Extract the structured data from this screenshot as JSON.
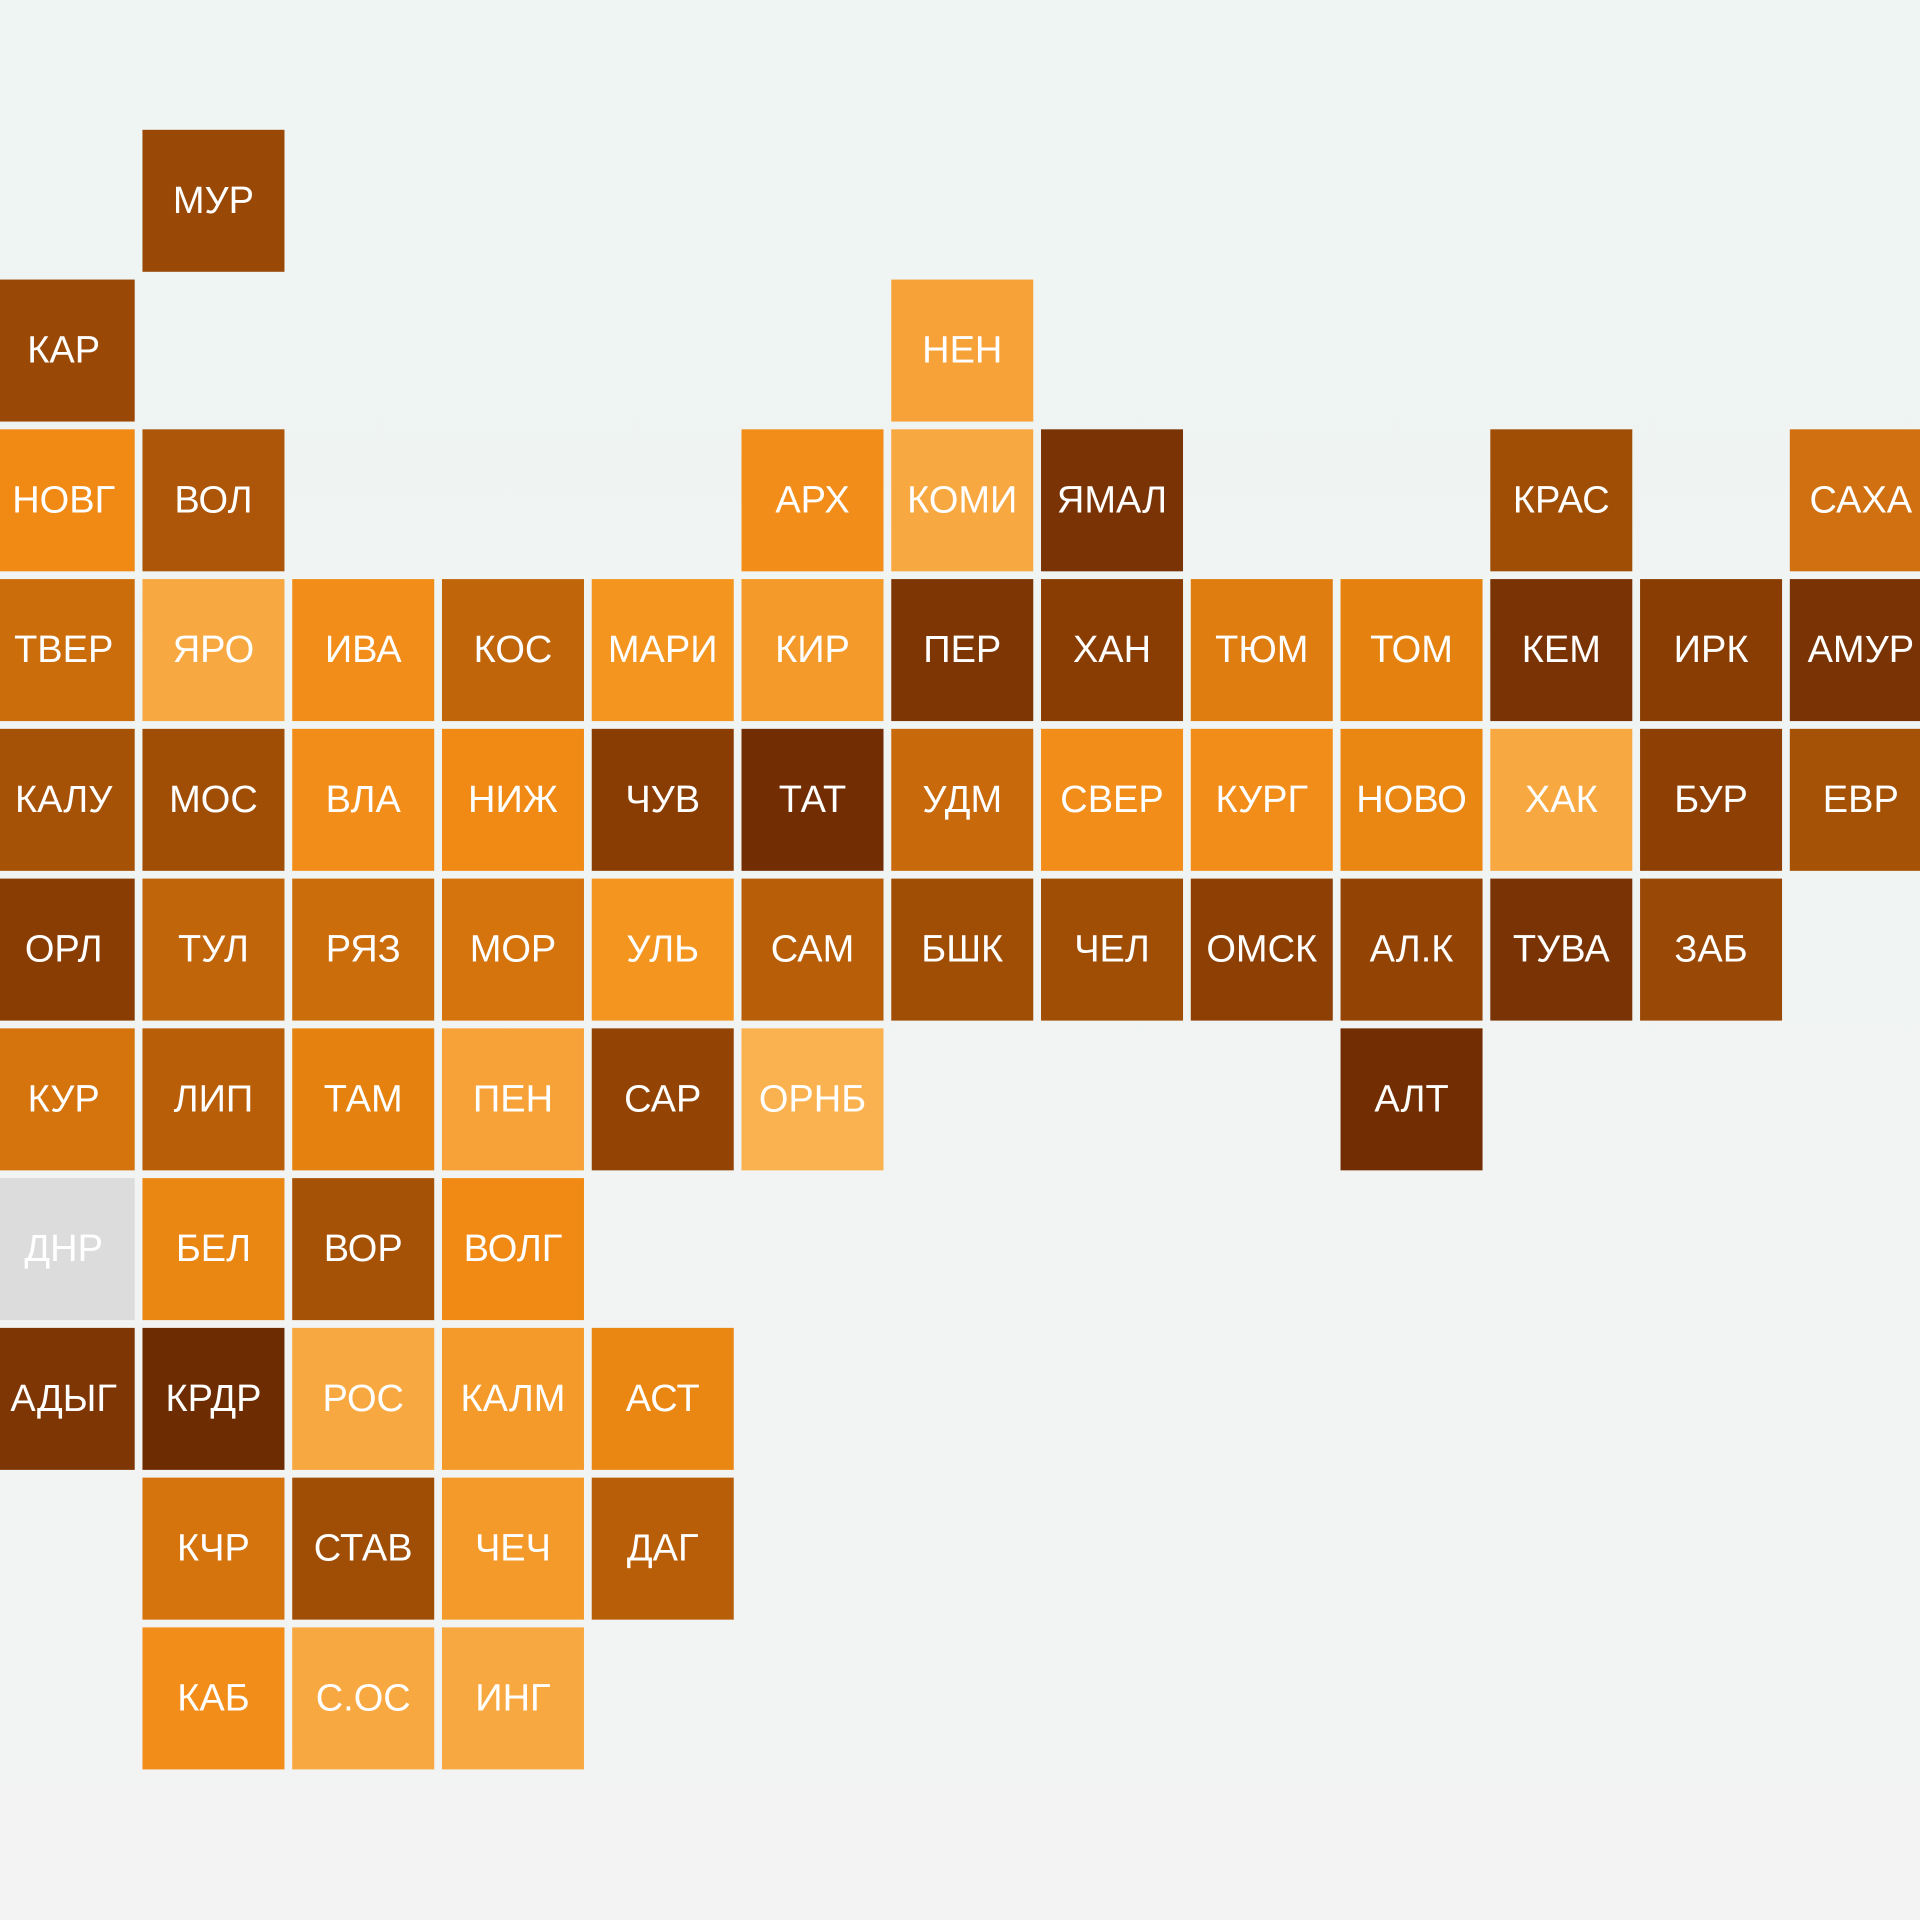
{
  "tiles": [
    {
      "label": "МУР",
      "color": "#9a4805"
    },
    {
      "label": "КАР",
      "color": "#9a4805"
    },
    {
      "label": "НЕН",
      "color": "#f7a238"
    },
    {
      "label": "НОВГ",
      "color": "#f08a14"
    },
    {
      "label": "ВОЛ",
      "color": "#ad5508"
    },
    {
      "label": "АРХ",
      "color": "#f28d1a"
    },
    {
      "label": "КОМИ",
      "color": "#f8a840"
    },
    {
      "label": "ЯМАЛ",
      "color": "#7a3304"
    },
    {
      "label": "КРАС",
      "color": "#a04e06"
    },
    {
      "label": "САХА",
      "color": "#d07010"
    },
    {
      "label": "ТВЕР",
      "color": "#cc6d0c"
    },
    {
      "label": "ЯРО",
      "color": "#f8a840"
    },
    {
      "label": "ИВА",
      "color": "#f28d1a"
    },
    {
      "label": "КОС",
      "color": "#c0650a"
    },
    {
      "label": "МАРИ",
      "color": "#f49520"
    },
    {
      "label": "КИР",
      "color": "#f49a2a"
    },
    {
      "label": "ПЕР",
      "color": "#7e3604"
    },
    {
      "label": "ХАН",
      "color": "#8a3d03"
    },
    {
      "label": "ТЮМ",
      "color": "#e07d10"
    },
    {
      "label": "ТОМ",
      "color": "#e5820f"
    },
    {
      "label": "КЕМ",
      "color": "#7a3304"
    },
    {
      "label": "ИРК",
      "color": "#8a3d03"
    },
    {
      "label": "АМУР",
      "color": "#7a3304"
    },
    {
      "label": "КАЛУ",
      "color": "#a55106"
    },
    {
      "label": "МОС",
      "color": "#a04e06"
    },
    {
      "label": "ВЛА",
      "color": "#f28d1a"
    },
    {
      "label": "НИЖ",
      "color": "#f08a14"
    },
    {
      "label": "ЧУВ",
      "color": "#8a3d03"
    },
    {
      "label": "ТАТ",
      "color": "#722e02"
    },
    {
      "label": "УДМ",
      "color": "#c8690b"
    },
    {
      "label": "СВЕР",
      "color": "#f28d1a"
    },
    {
      "label": "КУРГ",
      "color": "#f28d1a"
    },
    {
      "label": "НОВО",
      "color": "#ea8612"
    },
    {
      "label": "ХАК",
      "color": "#f8a840"
    },
    {
      "label": "БУР",
      "color": "#8e4004"
    },
    {
      "label": "ЕВР",
      "color": "#a55106"
    },
    {
      "label": "ОРЛ",
      "color": "#8a3d03"
    },
    {
      "label": "ТУЛ",
      "color": "#c0650a"
    },
    {
      "label": "РЯЗ",
      "color": "#cc6d0c"
    },
    {
      "label": "МОР",
      "color": "#d5730d"
    },
    {
      "label": "УЛЬ",
      "color": "#f49520"
    },
    {
      "label": "САМ",
      "color": "#b85e09"
    },
    {
      "label": "БШК",
      "color": "#a04e06"
    },
    {
      "label": "ЧЕЛ",
      "color": "#a04e06"
    },
    {
      "label": "ОМСК",
      "color": "#8e4004"
    },
    {
      "label": "АЛ.К",
      "color": "#934404"
    },
    {
      "label": "ТУВА",
      "color": "#7a3304"
    },
    {
      "label": "ЗАБ",
      "color": "#9a4805"
    },
    {
      "label": "КУР",
      "color": "#d5730d"
    },
    {
      "label": "ЛИП",
      "color": "#b85e09"
    },
    {
      "label": "ТАМ",
      "color": "#e5820f"
    },
    {
      "label": "ПЕН",
      "color": "#f7a238"
    },
    {
      "label": "САР",
      "color": "#934404"
    },
    {
      "label": "ОРНБ",
      "color": "#f9b24f"
    },
    {
      "label": "АЛТ",
      "color": "#722e02"
    },
    {
      "label": "ДНР",
      "color": "#dcdcdc"
    },
    {
      "label": "БЕЛ",
      "color": "#ea8612"
    },
    {
      "label": "ВОР",
      "color": "#a55106"
    },
    {
      "label": "ВОЛГ",
      "color": "#f08a14"
    },
    {
      "label": "АДЫГ",
      "color": "#7e3604"
    },
    {
      "label": "КРДР",
      "color": "#6e2c02"
    },
    {
      "label": "РОС",
      "color": "#f8a840"
    },
    {
      "label": "КАЛМ",
      "color": "#f49a2a"
    },
    {
      "label": "АСТ",
      "color": "#ea8612"
    },
    {
      "label": "КЧР",
      "color": "#d5730d"
    },
    {
      "label": "СТАВ",
      "color": "#a04e06"
    },
    {
      "label": "ЧЕЧ",
      "color": "#f49a2a"
    },
    {
      "label": "ДАГ",
      "color": "#b85e09"
    },
    {
      "label": "КАБ",
      "color": "#f28d1a"
    },
    {
      "label": "С.ОС",
      "color": "#f8a840"
    },
    {
      "label": "ИНГ",
      "color": "#f8a840"
    }
  ]
}
